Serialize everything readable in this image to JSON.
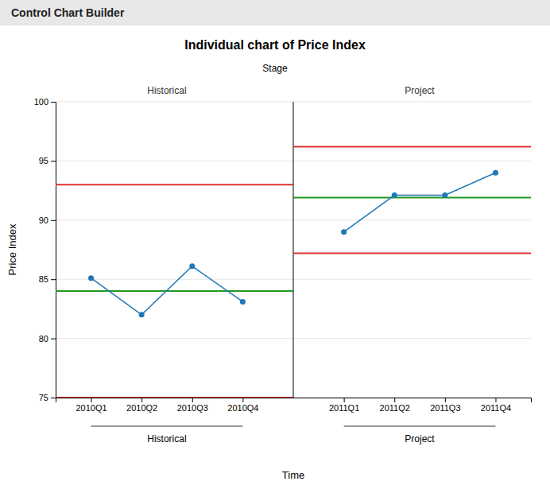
{
  "chart_data": {
    "type": "line",
    "header": "Control Chart Builder",
    "title": "Individual chart of Price Index",
    "xlabel": "Time",
    "ylabel": "Price Index",
    "stage_label": "Stage",
    "categories": [
      "2010Q1",
      "2010Q2",
      "2010Q3",
      "2010Q4",
      null,
      "2011Q1",
      "2011Q2",
      "2011Q3",
      "2011Q4"
    ],
    "values": [
      85.1,
      82.0,
      86.1,
      83.1,
      null,
      89.0,
      92.1,
      92.1,
      94.0
    ],
    "marker": "circle",
    "stages": [
      "Historical",
      "Project"
    ],
    "groups": [
      "Historical",
      "Project"
    ],
    "control_limits": {
      "ucl": {
        "values": [
          93.0,
          96.2
        ],
        "color": "#e03030"
      },
      "cl": {
        "values": [
          84.0,
          91.9
        ],
        "color": "#229922"
      },
      "lcl": {
        "values": [
          75.0,
          87.2
        ],
        "color": "#e03030"
      }
    },
    "ylim": [
      75,
      100
    ],
    "yticks": [
      75,
      80,
      85,
      90,
      95,
      100
    ],
    "grid": true
  }
}
